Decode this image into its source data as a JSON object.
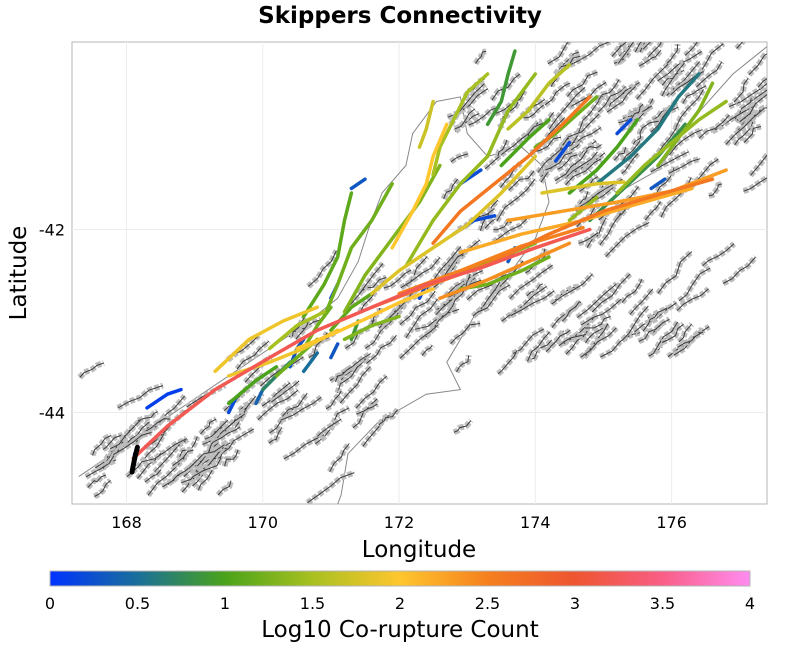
{
  "chart_data": {
    "type": "map",
    "title": "Skippers Connectivity",
    "xlabel": "Longitude",
    "ylabel": "Latitude",
    "xlim": [
      167.2,
      177.4
    ],
    "ylim": [
      -45.0,
      -39.95
    ],
    "xticks": [
      168,
      170,
      172,
      174,
      176
    ],
    "xtick_labels": [
      "168",
      "170",
      "172",
      "174",
      "176"
    ],
    "yticks": [
      -42,
      -44
    ],
    "ytick_labels": [
      "-42",
      "-44"
    ],
    "grid": true,
    "colorbar": {
      "label": "Log10 Co-rupture Count",
      "range": [
        0,
        4
      ],
      "ticks": [
        0,
        0.5,
        1,
        1.5,
        2,
        2.5,
        3,
        3.5,
        4
      ],
      "tick_labels": [
        "0",
        "0.5",
        "1",
        "1.5",
        "2",
        "2.5",
        "3",
        "3.5",
        "4"
      ],
      "colors": [
        "#0033ff",
        "#1a6f9a",
        "#4aa31a",
        "#a8c020",
        "#ffc62e",
        "#f5801e",
        "#ee5530",
        "#f95e86",
        "#ff8cf0"
      ]
    },
    "source_fault": {
      "name": "Skippers",
      "color": "#000000",
      "path": [
        [
          168.08,
          -44.65
        ],
        [
          168.12,
          -44.5
        ],
        [
          168.16,
          -44.38
        ]
      ]
    },
    "faults": [
      {
        "v": 3.2,
        "path": [
          [
            168.1,
            -44.5
          ],
          [
            168.6,
            -44.15
          ],
          [
            169.3,
            -43.75
          ],
          [
            170.1,
            -43.4
          ],
          [
            170.8,
            -43.1
          ],
          [
            171.6,
            -42.85
          ],
          [
            172.4,
            -42.6
          ],
          [
            173.2,
            -42.42
          ],
          [
            174.0,
            -42.2
          ],
          [
            174.8,
            -42.0
          ]
        ]
      },
      {
        "v": 2.6,
        "path": [
          [
            171.6,
            -42.85
          ],
          [
            172.4,
            -42.62
          ],
          [
            173.3,
            -42.38
          ],
          [
            174.2,
            -42.05
          ],
          [
            175.0,
            -41.8
          ],
          [
            175.8,
            -41.62
          ],
          [
            176.6,
            -41.45
          ]
        ]
      },
      {
        "v": 2.5,
        "path": [
          [
            172.0,
            -42.7
          ],
          [
            172.9,
            -42.45
          ],
          [
            173.8,
            -42.18
          ],
          [
            174.7,
            -41.98
          ]
        ]
      },
      {
        "v": 2.6,
        "path": [
          [
            172.5,
            -42.15
          ],
          [
            172.9,
            -41.8
          ],
          [
            173.4,
            -41.5
          ],
          [
            173.9,
            -41.2
          ],
          [
            174.4,
            -40.85
          ],
          [
            174.8,
            -40.55
          ]
        ]
      },
      {
        "v": 2.3,
        "path": [
          [
            173.6,
            -41.9
          ],
          [
            174.4,
            -41.8
          ],
          [
            175.2,
            -41.7
          ],
          [
            176.0,
            -41.58
          ],
          [
            176.8,
            -41.35
          ]
        ]
      },
      {
        "v": 2.2,
        "path": [
          [
            172.9,
            -42.25
          ],
          [
            173.8,
            -42.05
          ],
          [
            174.7,
            -41.9
          ],
          [
            175.5,
            -41.72
          ],
          [
            176.3,
            -41.55
          ]
        ]
      },
      {
        "v": 2.4,
        "path": [
          [
            172.6,
            -42.75
          ],
          [
            173.3,
            -42.55
          ],
          [
            173.9,
            -42.35
          ],
          [
            174.5,
            -42.15
          ]
        ]
      },
      {
        "v": 2.0,
        "path": [
          [
            170.5,
            -43.3
          ],
          [
            171.0,
            -43.15
          ],
          [
            171.5,
            -42.98
          ],
          [
            172.0,
            -42.8
          ],
          [
            172.5,
            -42.65
          ]
        ]
      },
      {
        "v": 1.9,
        "path": [
          [
            169.5,
            -43.6
          ],
          [
            170.1,
            -43.45
          ],
          [
            170.6,
            -43.3
          ],
          [
            171.1,
            -43.1
          ]
        ]
      },
      {
        "v": 1.8,
        "path": [
          [
            171.6,
            -42.7
          ],
          [
            172.0,
            -42.45
          ],
          [
            172.5,
            -42.2
          ],
          [
            173.0,
            -41.95
          ],
          [
            173.5,
            -41.6
          ],
          [
            174.0,
            -41.2
          ]
        ]
      },
      {
        "v": 2.0,
        "path": [
          [
            171.9,
            -42.2
          ],
          [
            172.2,
            -41.8
          ],
          [
            172.4,
            -41.5
          ],
          [
            172.5,
            -41.2
          ],
          [
            172.7,
            -40.85
          ]
        ]
      },
      {
        "v": 1.3,
        "path": [
          [
            171.2,
            -42.9
          ],
          [
            171.5,
            -42.5
          ],
          [
            171.9,
            -42.1
          ],
          [
            172.3,
            -41.7
          ],
          [
            172.6,
            -41.3
          ]
        ]
      },
      {
        "v": 1.2,
        "path": [
          [
            170.9,
            -42.95
          ],
          [
            171.1,
            -42.6
          ],
          [
            171.3,
            -42.2
          ],
          [
            171.6,
            -41.9
          ],
          [
            171.9,
            -41.5
          ]
        ]
      },
      {
        "v": 1.1,
        "path": [
          [
            170.6,
            -42.95
          ],
          [
            170.9,
            -42.6
          ],
          [
            171.1,
            -42.3
          ],
          [
            171.2,
            -41.9
          ],
          [
            171.3,
            -41.6
          ]
        ]
      },
      {
        "v": 1.4,
        "path": [
          [
            172.1,
            -42.4
          ],
          [
            172.5,
            -41.9
          ],
          [
            172.9,
            -41.5
          ],
          [
            173.3,
            -41.2
          ],
          [
            173.6,
            -40.7
          ],
          [
            174.0,
            -40.3
          ]
        ]
      },
      {
        "v": 1.5,
        "path": [
          [
            172.5,
            -41.4
          ],
          [
            172.6,
            -41.1
          ],
          [
            172.8,
            -40.8
          ],
          [
            173.0,
            -40.5
          ],
          [
            173.3,
            -40.3
          ]
        ]
      },
      {
        "v": 1.7,
        "path": [
          [
            172.3,
            -41.1
          ],
          [
            172.4,
            -40.9
          ],
          [
            172.5,
            -40.6
          ]
        ]
      },
      {
        "v": 1.0,
        "path": [
          [
            173.5,
            -41.3
          ],
          [
            173.9,
            -41.0
          ],
          [
            174.2,
            -40.8
          ]
        ]
      },
      {
        "v": 0.9,
        "path": [
          [
            173.3,
            -40.85
          ],
          [
            173.5,
            -40.6
          ],
          [
            173.6,
            -40.3
          ],
          [
            173.7,
            -40.05
          ]
        ]
      },
      {
        "v": 1.6,
        "path": [
          [
            173.6,
            -40.9
          ],
          [
            173.9,
            -40.7
          ],
          [
            174.2,
            -40.4
          ],
          [
            174.5,
            -40.2
          ]
        ]
      },
      {
        "v": 1.3,
        "path": [
          [
            173.0,
            -42.45
          ],
          [
            173.5,
            -42.3
          ],
          [
            174.0,
            -42.15
          ]
        ]
      },
      {
        "v": 1.2,
        "path": [
          [
            172.9,
            -42.65
          ],
          [
            173.3,
            -42.6
          ],
          [
            173.8,
            -42.45
          ],
          [
            174.2,
            -42.3
          ]
        ]
      },
      {
        "v": 0.8,
        "path": [
          [
            174.8,
            -41.9
          ],
          [
            175.3,
            -41.55
          ],
          [
            175.8,
            -41.2
          ],
          [
            176.2,
            -40.85
          ]
        ]
      },
      {
        "v": 0.6,
        "path": [
          [
            174.9,
            -41.5
          ],
          [
            175.4,
            -41.2
          ],
          [
            175.8,
            -40.9
          ],
          [
            176.1,
            -40.55
          ],
          [
            176.4,
            -40.3
          ]
        ]
      },
      {
        "v": 1.4,
        "path": [
          [
            175.2,
            -41.6
          ],
          [
            175.6,
            -41.3
          ],
          [
            176.0,
            -41.05
          ],
          [
            176.4,
            -40.8
          ],
          [
            176.8,
            -40.6
          ]
        ]
      },
      {
        "v": 1.3,
        "path": [
          [
            175.8,
            -41.3
          ],
          [
            176.1,
            -41.0
          ],
          [
            176.4,
            -40.7
          ],
          [
            176.6,
            -40.4
          ]
        ]
      },
      {
        "v": 1.0,
        "path": [
          [
            174.5,
            -41.6
          ],
          [
            174.9,
            -41.35
          ],
          [
            175.2,
            -41.1
          ],
          [
            175.5,
            -40.8
          ]
        ]
      },
      {
        "v": 1.4,
        "path": [
          [
            174.5,
            -41.9
          ],
          [
            174.9,
            -41.65
          ]
        ]
      },
      {
        "v": 1.2,
        "path": [
          [
            174.0,
            -41.1
          ],
          [
            174.3,
            -40.95
          ],
          [
            174.6,
            -40.75
          ],
          [
            174.9,
            -40.55
          ]
        ]
      },
      {
        "v": 1.9,
        "path": [
          [
            169.3,
            -43.55
          ],
          [
            169.8,
            -43.2
          ],
          [
            170.3,
            -43.0
          ],
          [
            170.8,
            -42.85
          ]
        ]
      },
      {
        "v": 1.2,
        "path": [
          [
            170.6,
            -43.3
          ],
          [
            170.8,
            -43.05
          ],
          [
            171.0,
            -42.85
          ]
        ]
      },
      {
        "v": 1.1,
        "path": [
          [
            171.0,
            -43.1
          ],
          [
            171.3,
            -42.85
          ],
          [
            171.6,
            -42.7
          ]
        ]
      },
      {
        "v": 1.3,
        "path": [
          [
            171.2,
            -43.2
          ],
          [
            171.6,
            -43.05
          ],
          [
            172.0,
            -42.95
          ]
        ]
      },
      {
        "v": 1.5,
        "path": [
          [
            170.1,
            -43.3
          ],
          [
            170.5,
            -43.05
          ],
          [
            170.9,
            -42.9
          ]
        ]
      },
      {
        "v": 1.0,
        "path": [
          [
            169.5,
            -43.9
          ],
          [
            169.9,
            -43.65
          ],
          [
            170.2,
            -43.5
          ]
        ]
      },
      {
        "v": 1.2,
        "path": [
          [
            170.2,
            -43.6
          ],
          [
            170.5,
            -43.4
          ],
          [
            170.8,
            -43.2
          ]
        ]
      },
      {
        "v": 0.7,
        "path": [
          [
            170.0,
            -43.75
          ],
          [
            170.2,
            -43.6
          ],
          [
            170.4,
            -43.45
          ]
        ]
      },
      {
        "v": 0.4,
        "path": [
          [
            169.9,
            -43.9
          ],
          [
            170.0,
            -43.75
          ]
        ]
      },
      {
        "v": 0.3,
        "path": [
          [
            170.4,
            -43.5
          ],
          [
            170.5,
            -43.3
          ],
          [
            170.6,
            -43.2
          ]
        ]
      },
      {
        "v": 0.2,
        "path": [
          [
            169.5,
            -44.0
          ],
          [
            169.6,
            -43.85
          ]
        ]
      },
      {
        "v": 0.5,
        "path": [
          [
            170.6,
            -43.55
          ],
          [
            170.8,
            -43.35
          ]
        ]
      },
      {
        "v": 0.3,
        "path": [
          [
            171.0,
            -43.4
          ],
          [
            171.1,
            -43.25
          ]
        ]
      },
      {
        "v": 0.9,
        "path": [
          [
            171.3,
            -43.2
          ],
          [
            171.4,
            -43.0
          ]
        ]
      },
      {
        "v": 0.1,
        "path": [
          [
            168.3,
            -43.95
          ],
          [
            168.6,
            -43.8
          ],
          [
            168.8,
            -43.75
          ]
        ]
      },
      {
        "v": 0.1,
        "path": [
          [
            171.1,
            -42.6
          ],
          [
            171.0,
            -42.75
          ]
        ]
      },
      {
        "v": 0.3,
        "path": [
          [
            171.3,
            -41.55
          ],
          [
            171.5,
            -41.45
          ]
        ]
      },
      {
        "v": 0.2,
        "path": [
          [
            172.8,
            -42.05
          ],
          [
            173.1,
            -41.9
          ],
          [
            173.4,
            -41.85
          ]
        ]
      },
      {
        "v": 0.2,
        "path": [
          [
            172.3,
            -42.75
          ],
          [
            172.4,
            -42.6
          ]
        ]
      },
      {
        "v": 0.3,
        "path": [
          [
            173.6,
            -42.35
          ],
          [
            173.7,
            -42.2
          ]
        ]
      },
      {
        "v": 0.2,
        "path": [
          [
            174.3,
            -41.25
          ],
          [
            174.5,
            -41.05
          ]
        ]
      },
      {
        "v": 0.2,
        "path": [
          [
            175.2,
            -40.95
          ],
          [
            175.4,
            -40.8
          ]
        ]
      },
      {
        "v": 0.3,
        "path": [
          [
            175.7,
            -41.55
          ],
          [
            175.9,
            -41.45
          ]
        ]
      },
      {
        "v": 0.2,
        "path": [
          [
            172.9,
            -41.5
          ],
          [
            173.2,
            -41.35
          ]
        ]
      },
      {
        "v": 0.1,
        "path": [
          [
            168.1,
            -44.62
          ],
          [
            168.12,
            -44.45
          ]
        ]
      },
      {
        "v": 1.8,
        "path": [
          [
            174.1,
            -41.6
          ],
          [
            174.5,
            -41.55
          ],
          [
            174.9,
            -41.5
          ],
          [
            175.3,
            -41.48
          ]
        ]
      }
    ]
  }
}
